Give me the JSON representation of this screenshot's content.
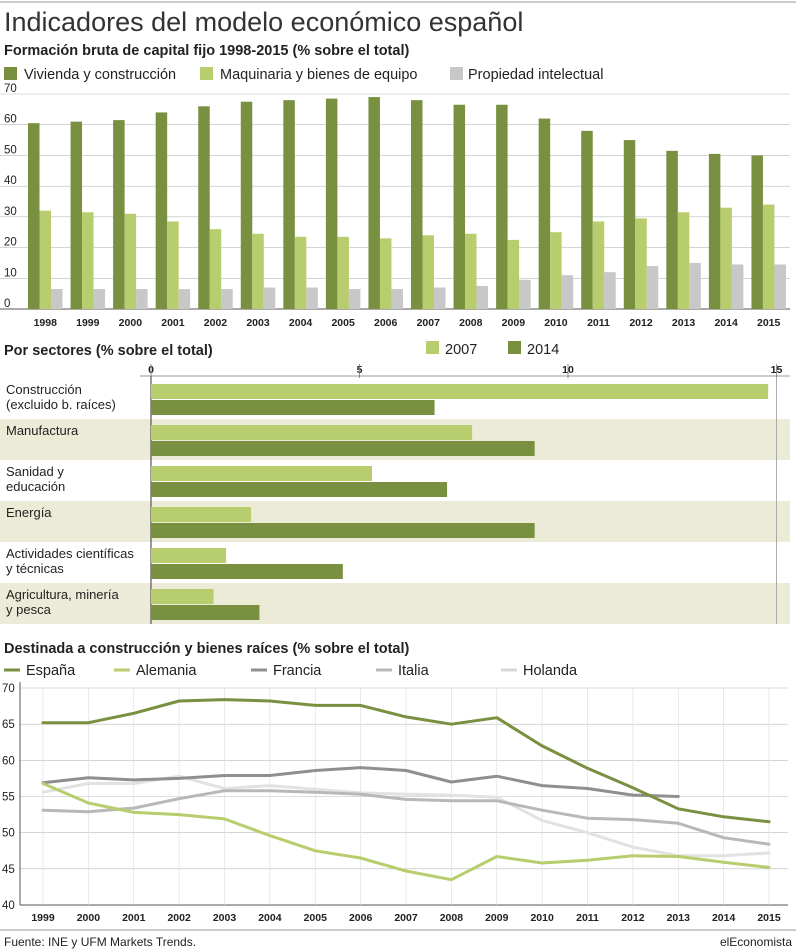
{
  "title": "Indicadores del modelo económico español",
  "footer": {
    "source": "Fuente: INE y UFM Markets Trends.",
    "brand": "elEconomista"
  },
  "colors": {
    "dark_green": "#78903f",
    "light_green": "#b8cd6d",
    "grey": "#c8c8c8",
    "band": "#ecebd8",
    "francia": "#8f8f8f",
    "italia": "#b8b8b8",
    "holanda": "#e2e2e2"
  },
  "chart_data": [
    {
      "type": "bar",
      "title": "Formación bruta de capital fijo 1998-2015 (% sobre el total)",
      "categories": [
        "1998",
        "1999",
        "2000",
        "2001",
        "2002",
        "2003",
        "2004",
        "2005",
        "2006",
        "2007",
        "2008",
        "2009",
        "2010",
        "2011",
        "2012",
        "2013",
        "2014",
        "2015"
      ],
      "series": [
        {
          "name": "Vivienda y construcción",
          "color": "#78903f",
          "values": [
            60.5,
            61,
            61.5,
            64,
            66,
            67.5,
            68,
            68.5,
            69,
            68,
            66.5,
            66.5,
            62,
            58,
            55,
            51.5,
            50.5,
            50
          ]
        },
        {
          "name": "Maquinaria y bienes de equipo",
          "color": "#b8cd6d",
          "values": [
            32,
            31.5,
            31,
            28.5,
            26,
            24.5,
            23.5,
            23.5,
            23,
            24,
            24.5,
            22.5,
            25,
            28.5,
            29.5,
            31.5,
            33,
            34
          ]
        },
        {
          "name": "Propiedad intelectual",
          "color": "#c8c8c8",
          "values": [
            6.5,
            6.5,
            6.5,
            6.5,
            6.5,
            7,
            7,
            6.5,
            6.5,
            7,
            7.5,
            9.5,
            11,
            12,
            14,
            15,
            14.5,
            14.5
          ]
        }
      ],
      "ylim": [
        0,
        70
      ],
      "yticks": [
        0,
        10,
        20,
        30,
        40,
        50,
        60,
        70
      ]
    },
    {
      "type": "bar",
      "orientation": "horizontal",
      "title": "Por sectores (% sobre el total)",
      "categories": [
        [
          "Construcción",
          "(excluido b. raíces)"
        ],
        [
          "Manufactura"
        ],
        [
          "Sanidad y",
          "educación"
        ],
        [
          "Energía"
        ],
        [
          "Actividades científicas",
          "y técnicas"
        ],
        [
          "Agricultura, minería",
          "y pesca"
        ]
      ],
      "series": [
        {
          "name": "2007",
          "color": "#b8cd6d",
          "values": [
            14.8,
            7.7,
            5.3,
            2.4,
            1.8,
            1.5
          ]
        },
        {
          "name": "2014",
          "color": "#78903f",
          "values": [
            6.8,
            9.2,
            7.1,
            9.2,
            4.6,
            2.6
          ]
        }
      ],
      "xlim": [
        0,
        15.3
      ],
      "xticks": [
        0,
        5,
        10,
        15
      ]
    },
    {
      "type": "line",
      "title": "Destinada a construcción y bienes raíces (% sobre el total)",
      "x": [
        "1999",
        "2000",
        "2001",
        "2002",
        "2003",
        "2004",
        "2005",
        "2006",
        "2007",
        "2008",
        "2009",
        "2010",
        "2011",
        "2012",
        "2013",
        "2014",
        "2015"
      ],
      "series": [
        {
          "name": "España",
          "color": "#78903f",
          "values": [
            65.2,
            65.2,
            66.5,
            68.2,
            68.4,
            68.2,
            67.6,
            67.6,
            66,
            65,
            65.9,
            62,
            58.9,
            56.2,
            53.3,
            52.2,
            51.5
          ]
        },
        {
          "name": "Alemania",
          "color": "#b8cd6d",
          "values": [
            56.8,
            54.1,
            52.8,
            52.5,
            51.9,
            49.6,
            47.5,
            46.5,
            44.7,
            43.5,
            46.7,
            45.8,
            46.2,
            46.8,
            46.7,
            45.9,
            45.2
          ]
        },
        {
          "name": "Francia",
          "color": "#8f8f8f",
          "values": [
            56.9,
            57.6,
            57.3,
            57.5,
            57.9,
            57.9,
            58.6,
            59,
            58.6,
            57,
            57.8,
            56.5,
            56.1,
            55.2,
            55,
            null,
            null
          ]
        },
        {
          "name": "Italia",
          "color": "#b8b8b8",
          "values": [
            53.1,
            52.9,
            53.4,
            54.7,
            55.8,
            55.8,
            55.6,
            55.3,
            54.6,
            54.4,
            54.4,
            53.1,
            52,
            51.8,
            51.3,
            49.3,
            48.4
          ]
        },
        {
          "name": "Holanda",
          "color": "#e2e2e2",
          "values": [
            55.6,
            56.8,
            56.8,
            57.8,
            56.1,
            56.5,
            56,
            55.5,
            55.3,
            55.2,
            54.9,
            51.7,
            50,
            48,
            46.8,
            46.8,
            47.2
          ]
        }
      ],
      "ylim": [
        40,
        70
      ],
      "yticks": [
        40,
        45,
        50,
        55,
        60,
        65,
        70
      ]
    }
  ]
}
